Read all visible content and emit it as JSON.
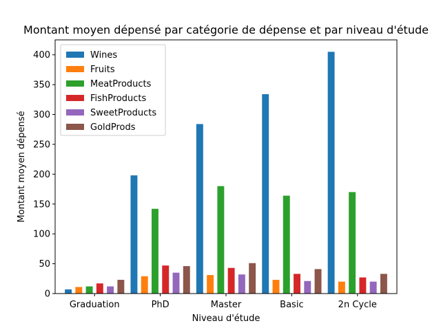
{
  "chart_data": {
    "type": "bar",
    "title": "Montant moyen dépensé par catégorie de dépense et par niveau d'étude",
    "xlabel": "Niveau d'étude",
    "ylabel": "Montant moyen dépensé",
    "categories": [
      "Graduation",
      "PhD",
      "Master",
      "Basic",
      "2n Cycle"
    ],
    "ylim": [
      0,
      425
    ],
    "yticks": [
      0,
      50,
      100,
      150,
      200,
      250,
      300,
      350,
      400
    ],
    "grid": false,
    "legend_position": "top-left",
    "series": [
      {
        "name": "Wines",
        "color": "#1f77b4",
        "values": [
          7,
          198,
          284,
          334,
          405
        ]
      },
      {
        "name": "Fruits",
        "color": "#ff7f0e",
        "values": [
          11,
          29,
          31,
          23,
          20
        ]
      },
      {
        "name": "MeatProducts",
        "color": "#2ca02c",
        "values": [
          12,
          142,
          180,
          164,
          170
        ]
      },
      {
        "name": "FishProducts",
        "color": "#d62728",
        "values": [
          17,
          47,
          43,
          33,
          27
        ]
      },
      {
        "name": "SweetProducts",
        "color": "#9467bd",
        "values": [
          12,
          35,
          32,
          21,
          20
        ]
      },
      {
        "name": "GoldProds",
        "color": "#8c564b",
        "values": [
          23,
          46,
          51,
          41,
          33
        ]
      }
    ]
  }
}
